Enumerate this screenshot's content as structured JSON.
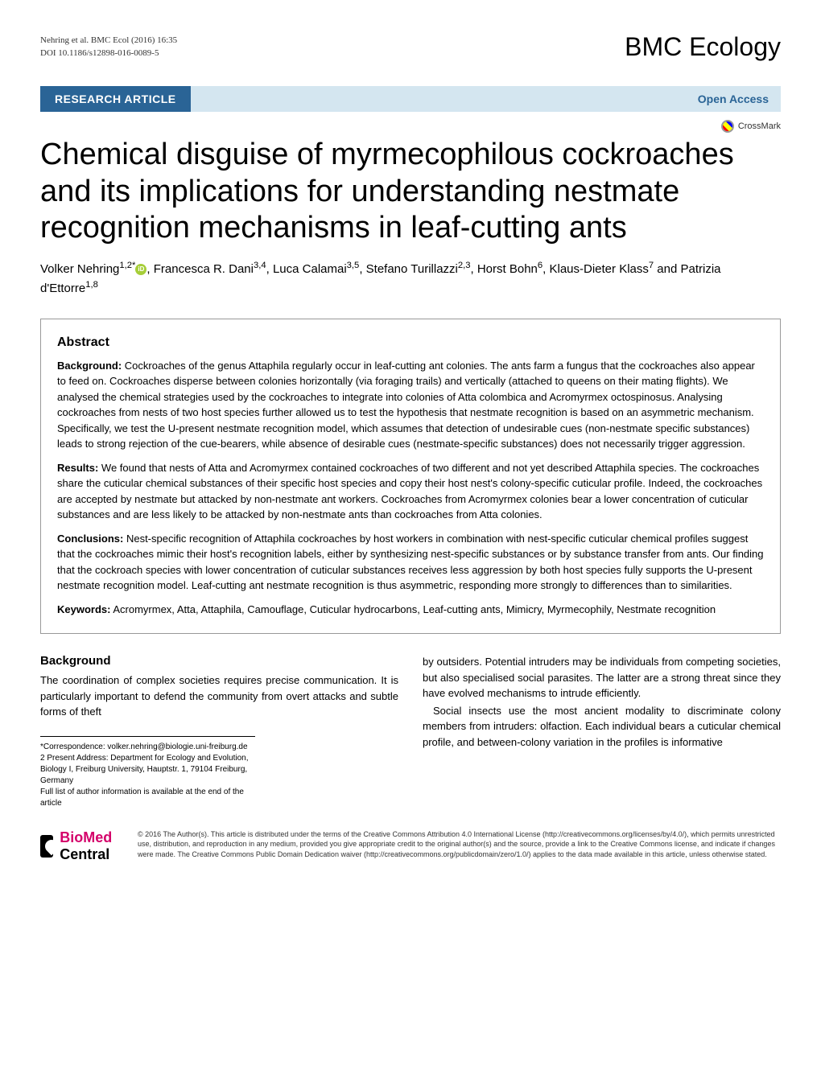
{
  "header": {
    "citation_line1": "Nehring et al. BMC Ecol  (2016) 16:35",
    "citation_line2": "DOI 10.1186/s12898-016-0089-5",
    "journal_name": "BMC Ecology"
  },
  "banner": {
    "article_type": "RESEARCH ARTICLE",
    "open_access": "Open Access",
    "crossmark": "CrossMark"
  },
  "title": "Chemical disguise of myrmecophilous cockroaches and its implications for understanding nestmate recognition mechanisms in leaf-cutting ants",
  "authors_html": "Volker Nehring<sup>1,2*</sup><span class=\"orcid-icon\" data-name=\"orcid-icon\" data-interactable=\"false\"></span>, Francesca R. Dani<sup>3,4</sup>, Luca Calamai<sup>3,5</sup>, Stefano Turillazzi<sup>2,3</sup>, Horst Bohn<sup>6</sup>, Klaus-Dieter Klass<sup>7</sup> and Patrizia d'Ettorre<sup>1,8</sup>",
  "abstract": {
    "heading": "Abstract",
    "background_label": "Background:",
    "background_text": "  Cockroaches of the genus Attaphila regularly occur in leaf-cutting ant colonies. The ants farm a fungus that the cockroaches also appear to feed on. Cockroaches disperse between colonies horizontally (via foraging trails) and vertically (attached to queens on their mating flights). We analysed the chemical strategies used by the cockroaches to integrate into colonies of Atta colombica and Acromyrmex octospinosus. Analysing cockroaches from nests of two host species further allowed us to test the hypothesis that nestmate recognition is based on an asymmetric mechanism. Specifically, we test the U-present nestmate recognition model, which assumes that detection of undesirable cues (non-nestmate specific substances) leads to strong rejection of the cue-bearers, while absence of desirable cues (nestmate-specific substances) does not necessarily trigger aggression.",
    "results_label": "Results:",
    "results_text": "  We found that nests of Atta and Acromyrmex contained cockroaches of two different and not yet described Attaphila species. The cockroaches share the cuticular chemical substances of their specific host species and copy their host nest's colony-specific cuticular profile. Indeed, the cockroaches are accepted by nestmate but attacked by non-nestmate ant workers. Cockroaches from Acromyrmex colonies bear a lower concentration of cuticular substances and are less likely to be attacked by non-nestmate ants than cockroaches from Atta colonies.",
    "conclusions_label": "Conclusions:",
    "conclusions_text": "  Nest-specific recognition of Attaphila cockroaches by host workers in combination with nest-specific cuticular chemical profiles suggest that the cockroaches mimic their host's recognition labels, either by synthesizing nest-specific substances or by substance transfer from ants. Our finding that the cockroach species with lower concentration of cuticular substances receives less aggression by both host species fully supports the U-present nestmate recognition model. Leaf-cutting ant nestmate recognition is thus asymmetric, responding more strongly to differences than to similarities.",
    "keywords_label": "Keywords:",
    "keywords_text": "  Acromyrmex, Atta, Attaphila, Camouflage, Cuticular hydrocarbons, Leaf-cutting ants, Mimicry, Myrmecophily, Nestmate recognition"
  },
  "body": {
    "background_heading": "Background",
    "left_para": "The coordination of complex societies requires precise communication. It is particularly important to defend the community from overt attacks and subtle forms of theft",
    "right_para1": "by outsiders. Potential intruders may be individuals from competing societies, but also specialised social parasites. The latter are a strong threat since they have evolved mechanisms to intrude efficiently.",
    "right_para2": "Social insects use the most ancient modality to discriminate colony members from intruders: olfaction. Each individual bears a cuticular chemical profile, and between-colony variation in the profiles is informative"
  },
  "footnote": {
    "correspondence": "*Correspondence:  volker.nehring@biologie.uni-freiburg.de",
    "address": "2 Present Address: Department for Ecology and Evolution, Biology I, Freiburg University, Hauptstr. 1, 79104 Freiburg, Germany",
    "full_list": "Full list of author information is available at the end of the article"
  },
  "footer": {
    "biomed_bio": "BioMed",
    "biomed_central": " Central",
    "license": "© 2016 The Author(s). This article is distributed under the terms of the Creative Commons Attribution 4.0 International License (http://creativecommons.org/licenses/by/4.0/), which permits unrestricted use, distribution, and reproduction in any medium, provided you give appropriate credit to the original author(s) and the source, provide a link to the Creative Commons license, and indicate if changes were made. The Creative Commons Public Domain Dedication waiver (http://creativecommons.org/publicdomain/zero/1.0/) applies to the data made available in this article, unless otherwise stated."
  },
  "colors": {
    "banner_bg": "#2a6496",
    "open_access_bg": "#d4e6f0",
    "link_color": "#2a6496"
  }
}
